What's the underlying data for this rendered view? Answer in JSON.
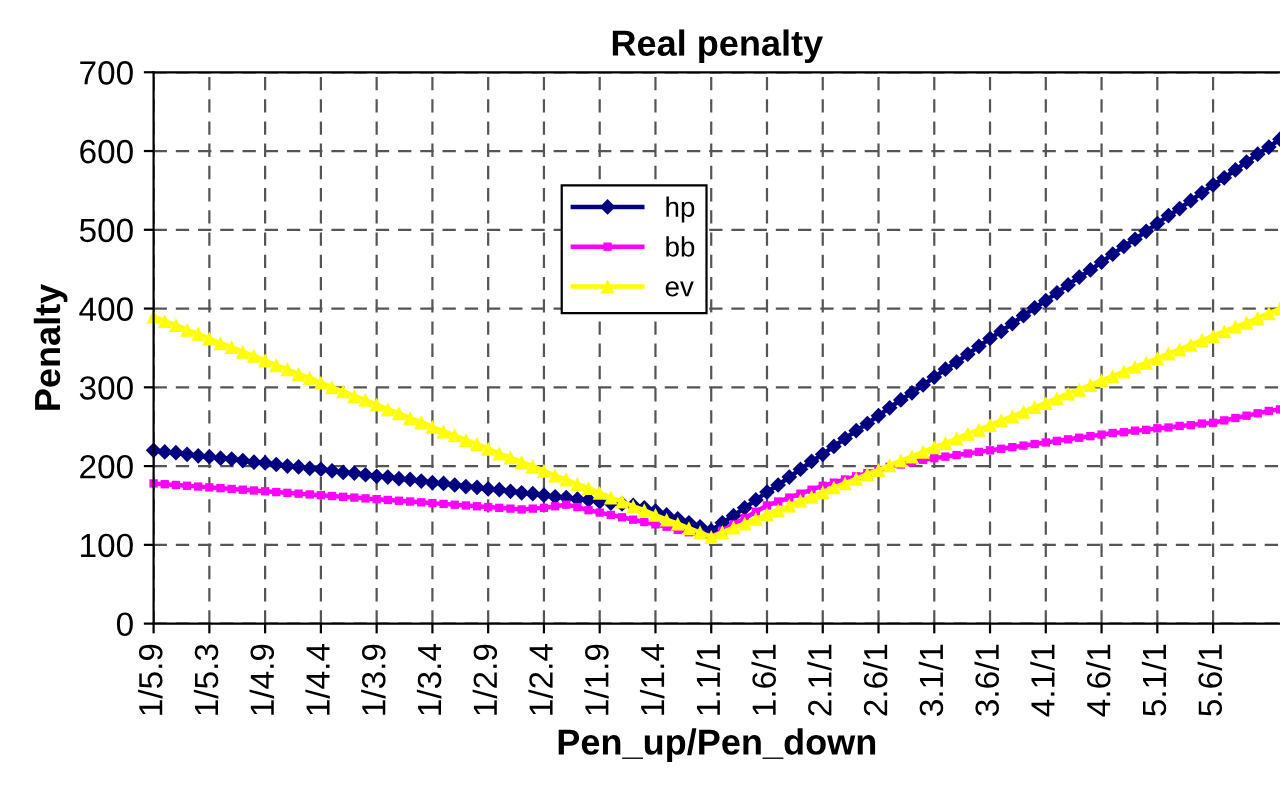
{
  "chart_data": {
    "type": "line",
    "title": "Real penalty",
    "xlabel": "Pen_up/Pen_down",
    "ylabel": "Penalty",
    "categories": [
      "1/5.9",
      null,
      null,
      null,
      null,
      "1/5.3",
      null,
      null,
      null,
      null,
      "1/4.9",
      null,
      null,
      null,
      null,
      "1/4.4",
      null,
      null,
      null,
      null,
      "1/3.9",
      null,
      null,
      null,
      null,
      "1/3.4",
      null,
      null,
      null,
      null,
      "1/2.9",
      null,
      null,
      null,
      null,
      "1/2.4",
      null,
      null,
      null,
      null,
      "1/1.9",
      null,
      null,
      null,
      null,
      "1/1.4",
      null,
      null,
      null,
      null,
      "1.1/1",
      null,
      null,
      null,
      null,
      "1.6/1",
      null,
      null,
      null,
      null,
      "2.1/1",
      null,
      null,
      null,
      null,
      "2.6/1",
      null,
      null,
      null,
      null,
      "3.1/1",
      null,
      null,
      null,
      null,
      "3.6/1",
      null,
      null,
      null,
      null,
      "4.1/1",
      null,
      null,
      null,
      null,
      "4.6/1",
      null,
      null,
      null,
      null,
      "5.1/1",
      null,
      null,
      null,
      null,
      "5.6/1",
      null,
      null,
      null,
      null,
      null,
      null
    ],
    "series": [
      {
        "name": "hp",
        "color": "#000080",
        "marker": "diamond",
        "values": [
          220,
          218,
          217,
          215,
          213,
          212,
          210,
          209,
          207,
          205,
          204,
          202,
          200,
          199,
          197,
          196,
          194,
          192,
          191,
          189,
          187,
          186,
          184,
          183,
          181,
          179,
          178,
          176,
          174,
          173,
          171,
          170,
          168,
          166,
          165,
          163,
          161,
          160,
          158,
          157,
          155,
          153,
          152,
          150,
          147,
          143,
          138,
          133,
          128,
          123,
          118,
          128,
          137,
          147,
          157,
          167,
          176,
          186,
          196,
          206,
          215,
          225,
          235,
          245,
          254,
          264,
          274,
          284,
          293,
          303,
          313,
          323,
          332,
          342,
          352,
          362,
          371,
          381,
          391,
          401,
          410,
          420,
          430,
          440,
          449,
          459,
          469,
          479,
          488,
          498,
          508,
          518,
          527,
          537,
          547,
          557,
          566,
          576,
          586,
          596,
          605,
          615
        ]
      },
      {
        "name": "bb",
        "color": "#ff00ff",
        "marker": "square",
        "values": [
          178,
          177,
          176,
          175,
          174,
          173,
          172,
          171,
          170,
          169,
          168,
          167,
          166,
          165,
          164,
          163,
          162,
          161,
          160,
          159,
          158,
          157,
          156,
          155,
          154,
          153,
          152,
          151,
          150,
          149,
          148,
          147,
          146,
          145,
          146,
          147,
          149,
          151,
          148,
          144,
          141,
          138,
          135,
          132,
          129,
          126,
          123,
          119,
          116,
          113,
          110,
          118,
          126,
          134,
          142,
          150,
          155,
          160,
          165,
          170,
          175,
          179,
          183,
          187,
          191,
          195,
          199,
          202,
          205,
          208,
          210,
          212,
          214,
          216,
          218,
          220,
          222,
          224,
          226,
          228,
          230,
          232,
          234,
          236,
          238,
          240,
          242,
          243,
          245,
          246,
          248,
          249,
          251,
          252,
          254,
          255,
          258,
          261,
          264,
          267,
          270,
          272
        ]
      },
      {
        "name": "ev",
        "color": "#ffff00",
        "marker": "triangle",
        "values": [
          390,
          384,
          379,
          373,
          368,
          362,
          356,
          351,
          345,
          340,
          334,
          328,
          323,
          317,
          312,
          306,
          300,
          295,
          289,
          284,
          278,
          272,
          267,
          261,
          256,
          250,
          244,
          239,
          233,
          228,
          222,
          216,
          211,
          205,
          200,
          194,
          188,
          183,
          177,
          172,
          166,
          160,
          155,
          149,
          144,
          138,
          132,
          127,
          121,
          116,
          110,
          116,
          122,
          127,
          133,
          139,
          144,
          150,
          156,
          161,
          167,
          173,
          178,
          184,
          190,
          195,
          201,
          207,
          212,
          218,
          224,
          229,
          235,
          241,
          246,
          252,
          258,
          263,
          269,
          275,
          280,
          286,
          292,
          297,
          303,
          309,
          314,
          320,
          326,
          331,
          337,
          343,
          348,
          354,
          360,
          365,
          371,
          377,
          382,
          388,
          394,
          400
        ]
      }
    ],
    "ylim": [
      0,
      700
    ],
    "yticks": [
      0,
      100,
      200,
      300,
      400,
      500,
      600,
      700
    ],
    "grid": true,
    "legend": "top center",
    "line_style": "solid"
  }
}
